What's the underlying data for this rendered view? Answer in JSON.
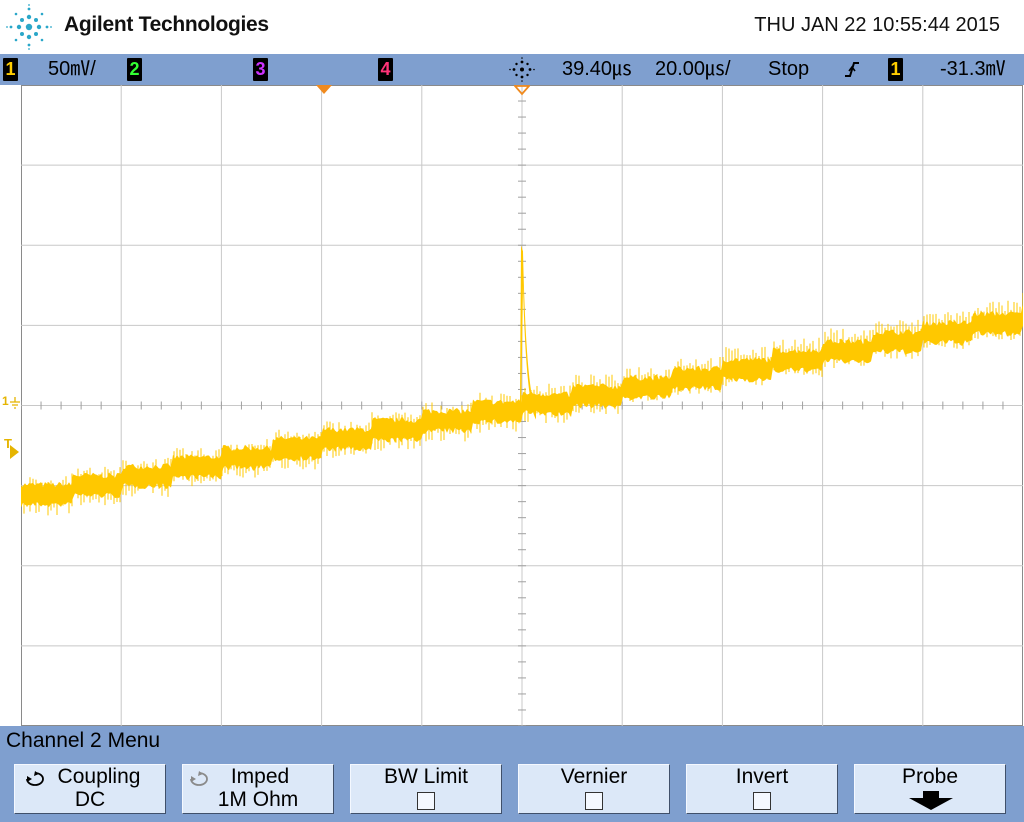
{
  "header": {
    "brand": "Agilent Technologies",
    "datetime": "THU JAN 22 10:55:44 2015",
    "logo_icon": "agilent-spark-icon"
  },
  "status": {
    "ch1": {
      "number": "1",
      "scale": "50㎷/",
      "color": "#ffcc00"
    },
    "ch2": {
      "number": "2",
      "color": "#33ff33"
    },
    "ch3": {
      "number": "3",
      "color": "#cc33ff"
    },
    "ch4": {
      "number": "4",
      "color": "#ff3377"
    },
    "acquire_icon": "acquisition-spark-icon",
    "time_delay": "39.40㎲",
    "time_scale": "20.00㎲/",
    "run_state": "Stop",
    "trigger_edge_icon": "rising-edge-icon",
    "trigger_source": "1",
    "trigger_level": "-31.3㎷"
  },
  "markers": {
    "ch1_ground": "1",
    "trigger_level": "T"
  },
  "waveform": {
    "color": "#ffc800",
    "description_units": "divisions",
    "start_level_div": -1.1,
    "end_level_div": 1.2,
    "spike_peak_div": 2.0,
    "spike_time_div": 0.0
  },
  "menu": {
    "title": "Channel 2  Menu",
    "softkeys": [
      {
        "label": "Coupling",
        "value": "DC",
        "type": "cycle"
      },
      {
        "label": "Imped",
        "value": "1M Ohm",
        "type": "cycle-disabled"
      },
      {
        "label": "BW Limit",
        "value": "",
        "type": "checkbox"
      },
      {
        "label": "Vernier",
        "value": "",
        "type": "checkbox"
      },
      {
        "label": "Invert",
        "value": "",
        "type": "checkbox"
      },
      {
        "label": "Probe",
        "value": "",
        "type": "submenu"
      }
    ]
  },
  "colors": {
    "bar_bg": "#7f9fcf",
    "softkey_bg": "#dce8f8",
    "trace": "#ffc800",
    "marker_orange": "#f08a1e"
  }
}
